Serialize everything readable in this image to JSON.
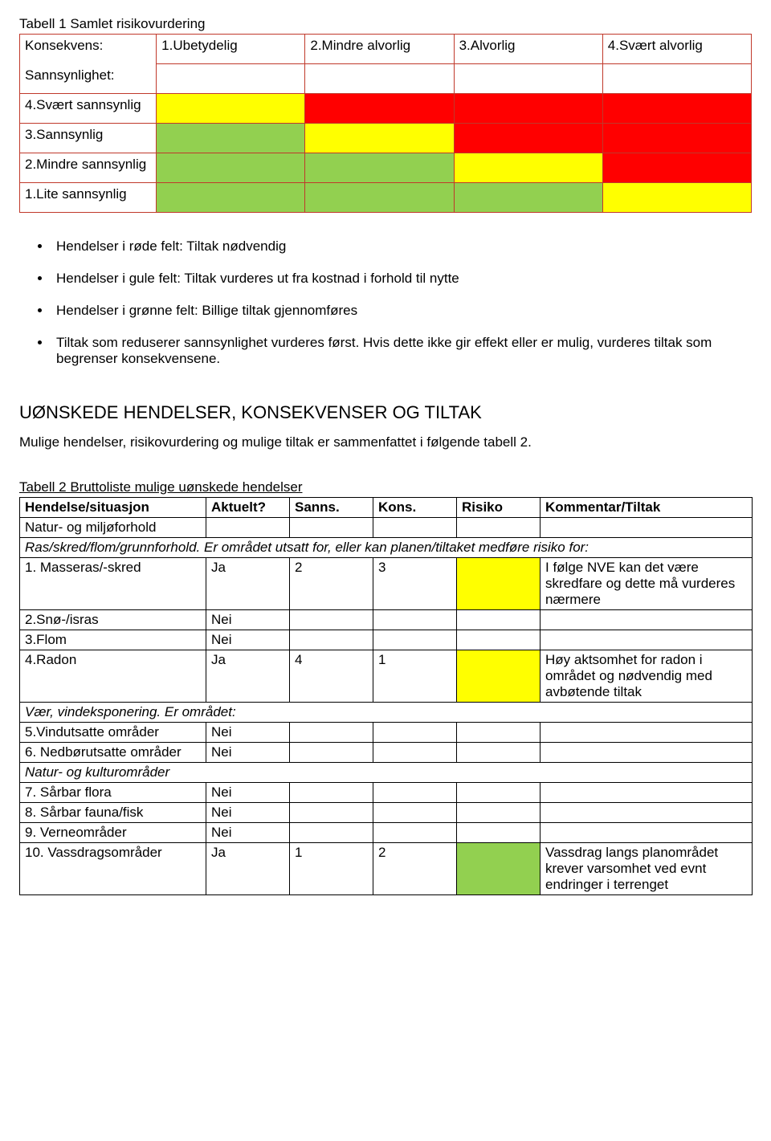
{
  "colors": {
    "green": "#92d050",
    "yellow": "#ffff00",
    "red": "#ff0000",
    "matrix_border": "#c0392b",
    "table_border": "#000000",
    "background": "#ffffff"
  },
  "table1": {
    "title": "Tabell 1 Samlet risikovurdering",
    "konsekvens_label": "Konsekvens:",
    "sannsynlighet_label": "Sannsynlighet:",
    "consequence_headers": [
      "1.Ubetydelig",
      "2.Mindre alvorlig",
      "3.Alvorlig",
      "4.Svært alvorlig"
    ],
    "likelihood_rows": [
      {
        "label": "4.Svært sannsynlig",
        "cells": [
          "yellow",
          "red",
          "red",
          "red"
        ]
      },
      {
        "label": "3.Sannsynlig",
        "cells": [
          "green",
          "yellow",
          "red",
          "red"
        ]
      },
      {
        "label": "2.Mindre sannsynlig",
        "cells": [
          "green",
          "green",
          "yellow",
          "red"
        ]
      },
      {
        "label": "1.Lite sannsynlig",
        "cells": [
          "green",
          "green",
          "green",
          "yellow"
        ]
      }
    ]
  },
  "bullets": [
    "Hendelser i røde felt: Tiltak nødvendig",
    "Hendelser i gule felt: Tiltak vurderes ut fra kostnad i forhold til nytte",
    "Hendelser i grønne felt: Billige tiltak gjennomføres",
    "Tiltak som reduserer sannsynlighet vurderes først. Hvis dette ikke gir effekt eller er mulig, vurderes tiltak som begrenser konsekvensene."
  ],
  "section2": {
    "heading": "UØNSKEDE HENDELSER, KONSEKVENSER OG TILTAK",
    "intro": "Mulige hendelser, risikovurdering og mulige tiltak er sammenfattet i følgende tabell 2."
  },
  "table2": {
    "title": "Tabell 2 Bruttoliste mulige uønskede hendelser",
    "headers": [
      "Hendelse/situasjon",
      "Aktuelt?",
      "Sanns.",
      "Kons.",
      "Risiko",
      "Kommentar/Tiltak"
    ],
    "rows": [
      {
        "type": "subhead",
        "text": "Natur- og miljøforhold"
      },
      {
        "type": "italic-span",
        "text": "Ras/skred/flom/grunnforhold. Er området utsatt for, eller kan planen/tiltaket medføre risiko for:"
      },
      {
        "type": "data",
        "cells": [
          "1. Masseras/-skred",
          "Ja",
          "2",
          "3",
          "",
          "I følge NVE kan det være skredfare og dette må vurderes nærmere"
        ],
        "risk_color": "yellow"
      },
      {
        "type": "data",
        "cells": [
          "2.Snø-/isras",
          "Nei",
          "",
          "",
          "",
          ""
        ],
        "risk_color": null
      },
      {
        "type": "data",
        "cells": [
          "3.Flom",
          "Nei",
          "",
          "",
          "",
          ""
        ],
        "risk_color": null
      },
      {
        "type": "data",
        "cells": [
          "4.Radon",
          "Ja",
          "4",
          "1",
          "",
          "Høy aktsomhet for radon i området og nødvendig med avbøtende tiltak"
        ],
        "risk_color": "yellow"
      },
      {
        "type": "italic-span",
        "text": "Vær, vindeksponering. Er området:"
      },
      {
        "type": "data",
        "cells": [
          "5.Vindutsatte områder",
          "Nei",
          "",
          "",
          "",
          ""
        ],
        "risk_color": null
      },
      {
        "type": "data",
        "cells": [
          "6. Nedbørutsatte områder",
          "Nei",
          "",
          "",
          "",
          ""
        ],
        "risk_color": null
      },
      {
        "type": "italic-span",
        "text": "Natur- og kulturområder"
      },
      {
        "type": "data",
        "cells": [
          "7. Sårbar flora",
          "Nei",
          "",
          "",
          "",
          ""
        ],
        "risk_color": null
      },
      {
        "type": "data",
        "cells": [
          "8. Sårbar fauna/fisk",
          "Nei",
          "",
          "",
          "",
          ""
        ],
        "risk_color": null
      },
      {
        "type": "data",
        "cells": [
          "9. Verneområder",
          "Nei",
          "",
          "",
          "",
          ""
        ],
        "risk_color": null
      },
      {
        "type": "data",
        "cells": [
          "10. Vassdragsområder",
          "Ja",
          "1",
          "2",
          "",
          "Vassdrag langs planområdet krever varsomhet ved evnt endringer i terrenget"
        ],
        "risk_color": "green"
      }
    ]
  }
}
